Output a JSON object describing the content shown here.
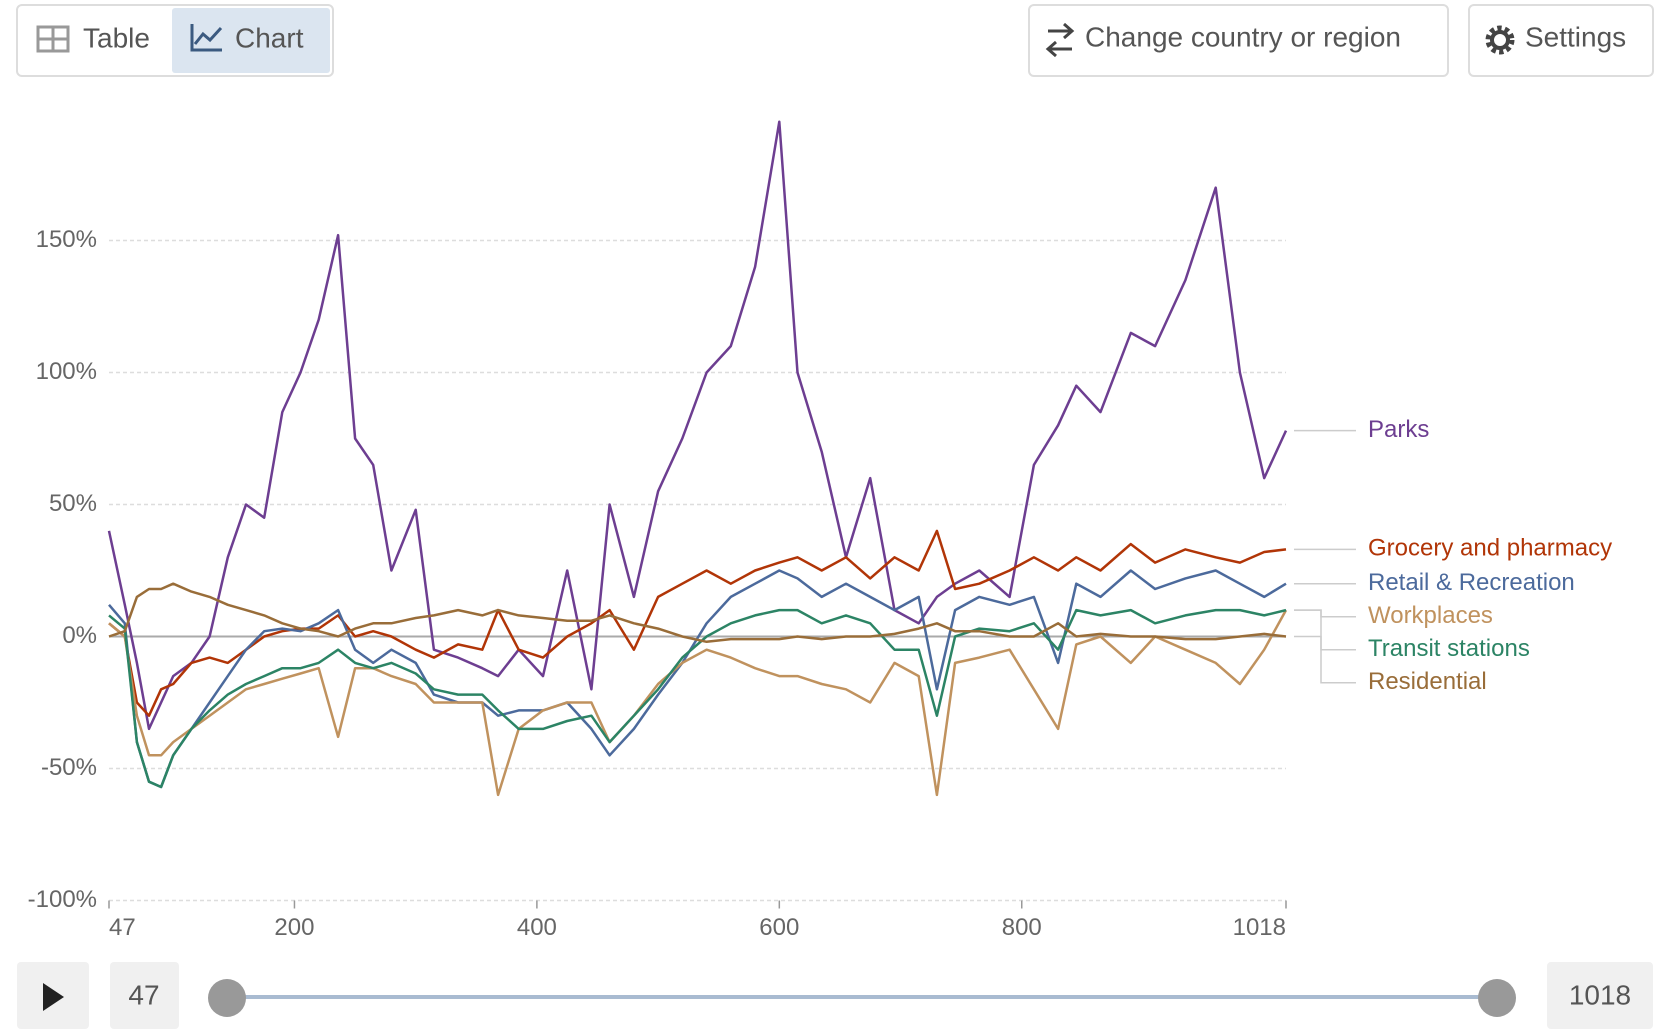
{
  "controls": {
    "tabs": [
      "Table",
      "Chart"
    ],
    "change_region": "Change country or region",
    "settings": "Settings"
  },
  "chart_data": {
    "type": "line",
    "x": [
      47,
      60,
      70,
      80,
      90,
      100,
      115,
      130,
      145,
      160,
      175,
      190,
      205,
      220,
      236,
      250,
      265,
      280,
      300,
      315,
      335,
      355,
      368,
      385,
      405,
      425,
      445,
      460,
      480,
      500,
      520,
      540,
      560,
      580,
      600,
      615,
      635,
      655,
      675,
      695,
      715,
      730,
      745,
      765,
      790,
      810,
      830,
      845,
      865,
      890,
      910,
      935,
      960,
      980,
      1000,
      1018
    ],
    "xlim": [
      47,
      1018
    ],
    "xticks": [
      47,
      200,
      400,
      600,
      800,
      1018
    ],
    "ylim": [
      -100,
      200
    ],
    "yticks": [
      {
        "value": -100,
        "label": "-100%"
      },
      {
        "value": -50,
        "label": "-50%"
      },
      {
        "value": 0,
        "label": "0%"
      },
      {
        "value": 50,
        "label": "50%"
      },
      {
        "value": 100,
        "label": "100%"
      },
      {
        "value": 150,
        "label": "150%"
      }
    ],
    "grid": true,
    "series": [
      {
        "name": "Parks",
        "color": "#6d3e91",
        "values": [
          40,
          12,
          -10,
          -35,
          -25,
          -15,
          -10,
          0,
          30,
          50,
          45,
          85,
          100,
          120,
          152,
          75,
          65,
          25,
          48,
          -5,
          -8,
          -12,
          -15,
          -5,
          -15,
          25,
          -20,
          50,
          15,
          55,
          75,
          100,
          110,
          140,
          195,
          100,
          70,
          30,
          60,
          10,
          5,
          15,
          20,
          25,
          15,
          65,
          80,
          95,
          85,
          115,
          110,
          135,
          170,
          100,
          60,
          78
        ]
      },
      {
        "name": "Grocery and pharmacy",
        "color": "#b13507",
        "values": [
          5,
          0,
          -25,
          -30,
          -20,
          -18,
          -10,
          -8,
          -10,
          -5,
          0,
          2,
          3,
          3,
          8,
          0,
          2,
          0,
          -5,
          -8,
          -3,
          -5,
          10,
          -5,
          -8,
          0,
          5,
          10,
          -5,
          15,
          20,
          25,
          20,
          25,
          28,
          30,
          25,
          30,
          22,
          30,
          25,
          40,
          18,
          20,
          25,
          30,
          25,
          30,
          25,
          35,
          28,
          33,
          30,
          28,
          32,
          33
        ]
      },
      {
        "name": "Retail & Recreation",
        "color": "#4c6a9c",
        "values": [
          12,
          5,
          -40,
          -55,
          -57,
          -45,
          -35,
          -25,
          -15,
          -5,
          2,
          3,
          2,
          5,
          10,
          -5,
          -10,
          -5,
          -10,
          -22,
          -25,
          -25,
          -30,
          -28,
          -28,
          -25,
          -35,
          -45,
          -35,
          -22,
          -10,
          5,
          15,
          20,
          25,
          22,
          15,
          20,
          15,
          10,
          15,
          -20,
          10,
          15,
          12,
          15,
          -10,
          20,
          15,
          25,
          18,
          22,
          25,
          20,
          15,
          20
        ]
      },
      {
        "name": "Workplaces",
        "color": "#c0925e",
        "values": [
          5,
          0,
          -30,
          -45,
          -45,
          -40,
          -35,
          -30,
          -25,
          -20,
          -18,
          -16,
          -14,
          -12,
          -38,
          -12,
          -12,
          -15,
          -18,
          -25,
          -25,
          -25,
          -60,
          -35,
          -28,
          -25,
          -25,
          -40,
          -30,
          -18,
          -10,
          -5,
          -8,
          -12,
          -15,
          -15,
          -18,
          -20,
          -25,
          -10,
          -15,
          -60,
          -10,
          -8,
          -5,
          -20,
          -35,
          -3,
          0,
          -10,
          0,
          -5,
          -10,
          -18,
          -5,
          10
        ]
      },
      {
        "name": "Transit stations",
        "color": "#2c8465",
        "values": [
          8,
          3,
          -40,
          -55,
          -57,
          -45,
          -35,
          -28,
          -22,
          -18,
          -15,
          -12,
          -12,
          -10,
          -5,
          -10,
          -12,
          -10,
          -14,
          -20,
          -22,
          -22,
          -28,
          -35,
          -35,
          -32,
          -30,
          -40,
          -30,
          -20,
          -8,
          0,
          5,
          8,
          10,
          10,
          5,
          8,
          5,
          -5,
          -5,
          -30,
          0,
          3,
          2,
          5,
          -5,
          10,
          8,
          10,
          5,
          8,
          10,
          10,
          8,
          10
        ]
      },
      {
        "name": "Residential",
        "color": "#996d39",
        "values": [
          0,
          2,
          15,
          18,
          18,
          20,
          17,
          15,
          12,
          10,
          8,
          5,
          3,
          2,
          0,
          3,
          5,
          5,
          7,
          8,
          10,
          8,
          10,
          8,
          7,
          6,
          6,
          8,
          5,
          3,
          0,
          -2,
          -1,
          -1,
          -1,
          0,
          -1,
          0,
          0,
          1,
          3,
          5,
          2,
          2,
          0,
          0,
          5,
          0,
          1,
          0,
          0,
          -1,
          -1,
          0,
          1,
          0
        ]
      }
    ]
  },
  "timeline": {
    "start": 47,
    "end": 1018
  }
}
